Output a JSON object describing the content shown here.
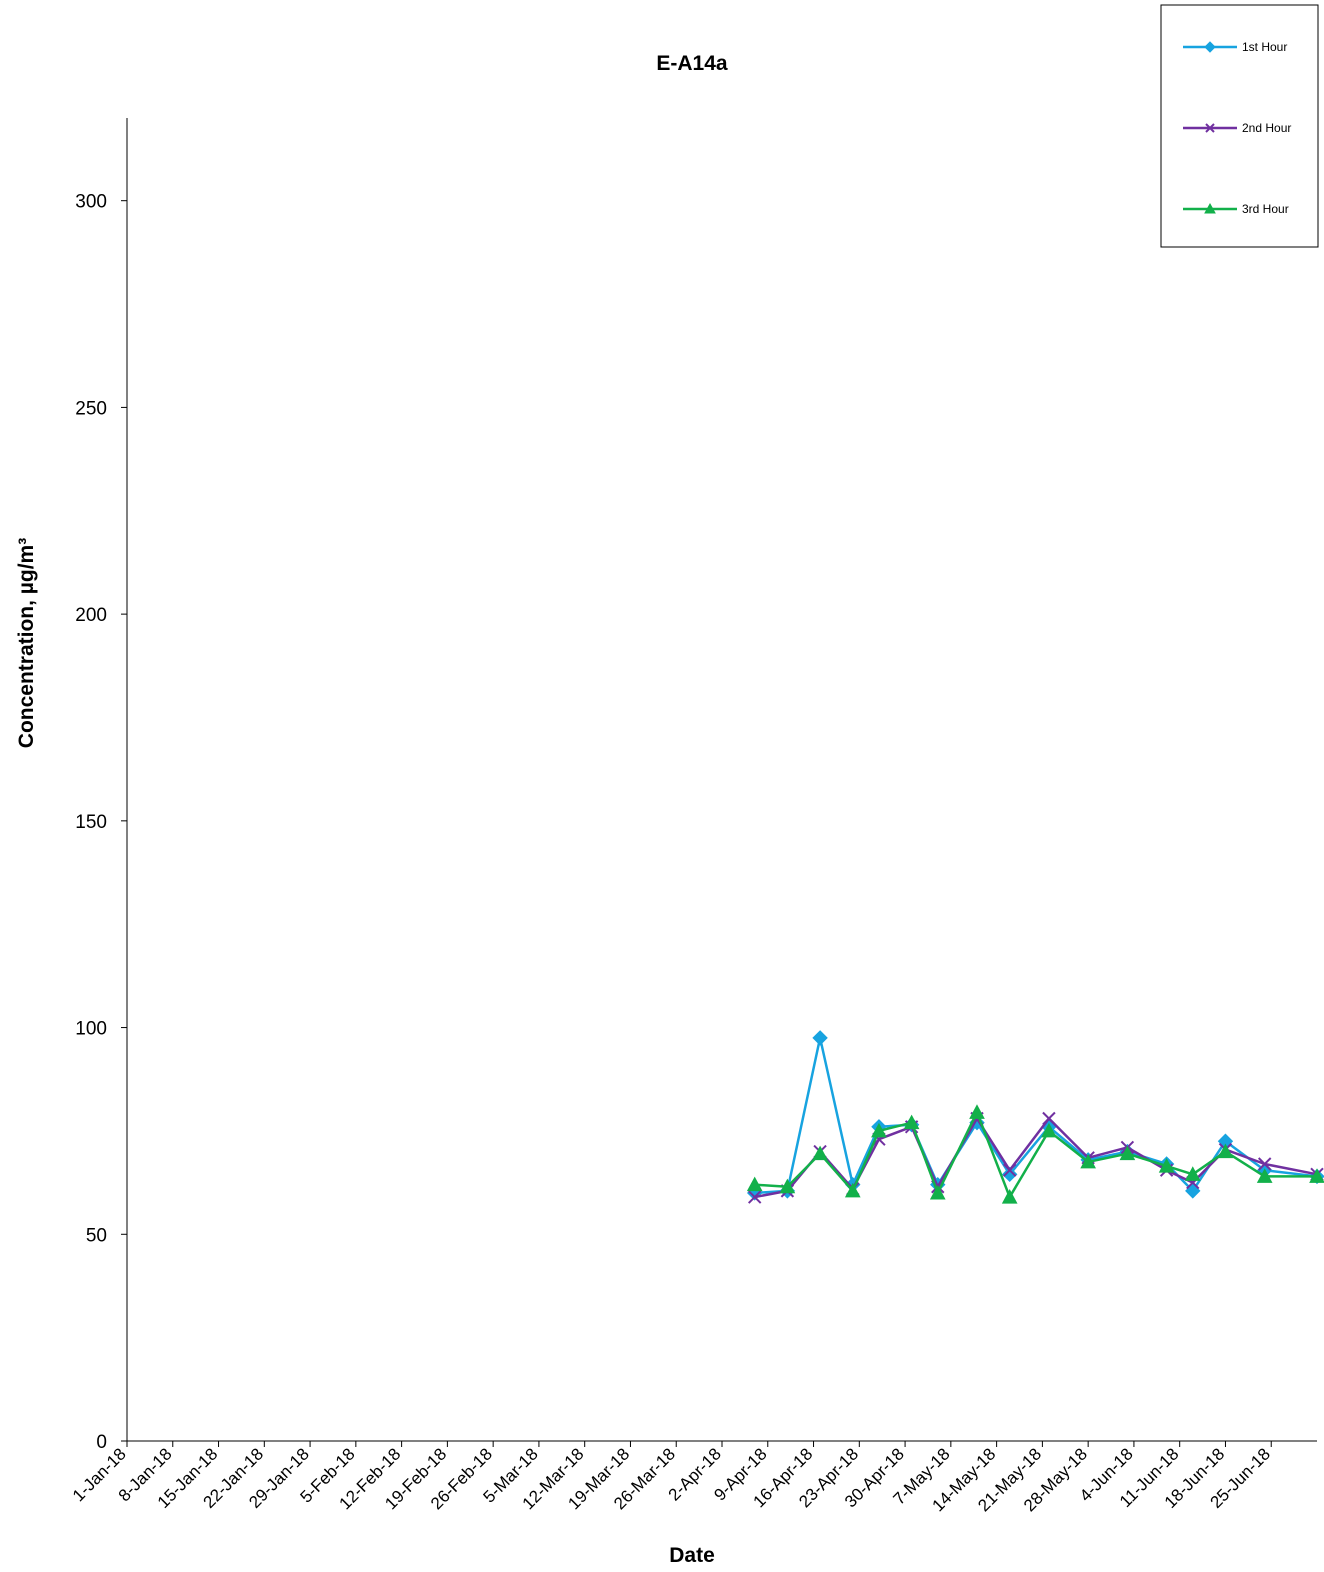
{
  "chart_data": {
    "type": "line",
    "title": "E-A14a",
    "xlabel": "Date",
    "ylabel": "Concentration, µg/m³",
    "ylim": [
      0,
      320
    ],
    "y_ticks": [
      0,
      50,
      100,
      150,
      200,
      250,
      300
    ],
    "xlim": [
      "2018-01-01",
      "2018-07-02"
    ],
    "x_tick_labels": [
      "1-Jan-18",
      "8-Jan-18",
      "15-Jan-18",
      "22-Jan-18",
      "29-Jan-18",
      "5-Feb-18",
      "12-Feb-18",
      "19-Feb-18",
      "26-Feb-18",
      "5-Mar-18",
      "12-Mar-18",
      "19-Mar-18",
      "26-Mar-18",
      "2-Apr-18",
      "9-Apr-18",
      "16-Apr-18",
      "23-Apr-18",
      "30-Apr-18",
      "7-May-18",
      "14-May-18",
      "21-May-18",
      "28-May-18",
      "4-Jun-18",
      "11-Jun-18",
      "18-Jun-18",
      "25-Jun-18"
    ],
    "grid": false,
    "legend_position": "top-right",
    "x": [
      "2018-04-07",
      "2018-04-12",
      "2018-04-17",
      "2018-04-22",
      "2018-04-26",
      "2018-05-01",
      "2018-05-05",
      "2018-05-11",
      "2018-05-16",
      "2018-05-22",
      "2018-05-28",
      "2018-06-03",
      "2018-06-09",
      "2018-06-13",
      "2018-06-18",
      "2018-06-24",
      "2018-07-02"
    ],
    "series": [
      {
        "name": "1st Hour",
        "color": "#17a3e0",
        "marker": "diamond",
        "values": [
          60,
          60.5,
          97.5,
          62,
          76,
          76.5,
          62,
          77,
          64.5,
          76,
          68,
          70,
          67,
          60.5,
          72.5,
          65.5,
          64
        ]
      },
      {
        "name": "2nd Hour",
        "color": "#7030a0",
        "marker": "x",
        "values": [
          59,
          60.5,
          70,
          61,
          73,
          76,
          61.5,
          78,
          65.5,
          78,
          68.5,
          71,
          65.5,
          62.5,
          70.5,
          67,
          64.5
        ]
      },
      {
        "name": "3rd Hour",
        "color": "#12b04a",
        "marker": "triangle",
        "values": [
          62,
          61.5,
          69.5,
          60.5,
          75,
          77,
          60,
          79.5,
          59,
          75,
          67.5,
          69.5,
          66.5,
          64.5,
          70,
          64,
          64
        ]
      }
    ]
  }
}
